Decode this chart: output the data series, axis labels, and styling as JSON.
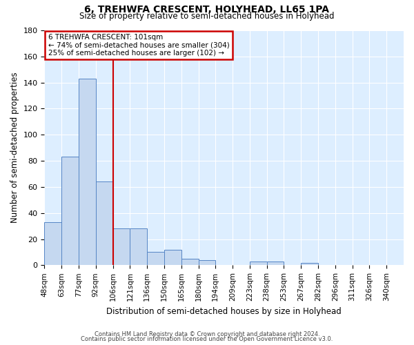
{
  "title": "6, TREHWFA CRESCENT, HOLYHEAD, LL65 1PA",
  "subtitle": "Size of property relative to semi-detached houses in Holyhead",
  "xlabel": "Distribution of semi-detached houses by size in Holyhead",
  "ylabel": "Number of semi-detached properties",
  "bin_labels": [
    "48sqm",
    "63sqm",
    "77sqm",
    "92sqm",
    "106sqm",
    "121sqm",
    "136sqm",
    "150sqm",
    "165sqm",
    "180sqm",
    "194sqm",
    "209sqm",
    "223sqm",
    "238sqm",
    "253sqm",
    "267sqm",
    "282sqm",
    "296sqm",
    "311sqm",
    "326sqm",
    "340sqm"
  ],
  "bar_heights": [
    33,
    83,
    143,
    64,
    28,
    28,
    10,
    12,
    5,
    4,
    0,
    0,
    3,
    3,
    0,
    2,
    0,
    0,
    0,
    0,
    0
  ],
  "bar_color": "#c5d8f0",
  "bar_edge_color": "#5585c5",
  "background_color": "#ddeeff",
  "grid_color": "#ffffff",
  "property_line_x": 4.0,
  "property_line_color": "#cc0000",
  "annotation_title": "6 TREHWFA CRESCENT: 101sqm",
  "annotation_line1": "← 74% of semi-detached houses are smaller (304)",
  "annotation_line2": "25% of semi-detached houses are larger (102) →",
  "annotation_box_color": "#cc0000",
  "ylim": [
    0,
    180
  ],
  "yticks": [
    0,
    20,
    40,
    60,
    80,
    100,
    120,
    140,
    160,
    180
  ],
  "footer_line1": "Contains HM Land Registry data © Crown copyright and database right 2024.",
  "footer_line2": "Contains public sector information licensed under the Open Government Licence v3.0."
}
